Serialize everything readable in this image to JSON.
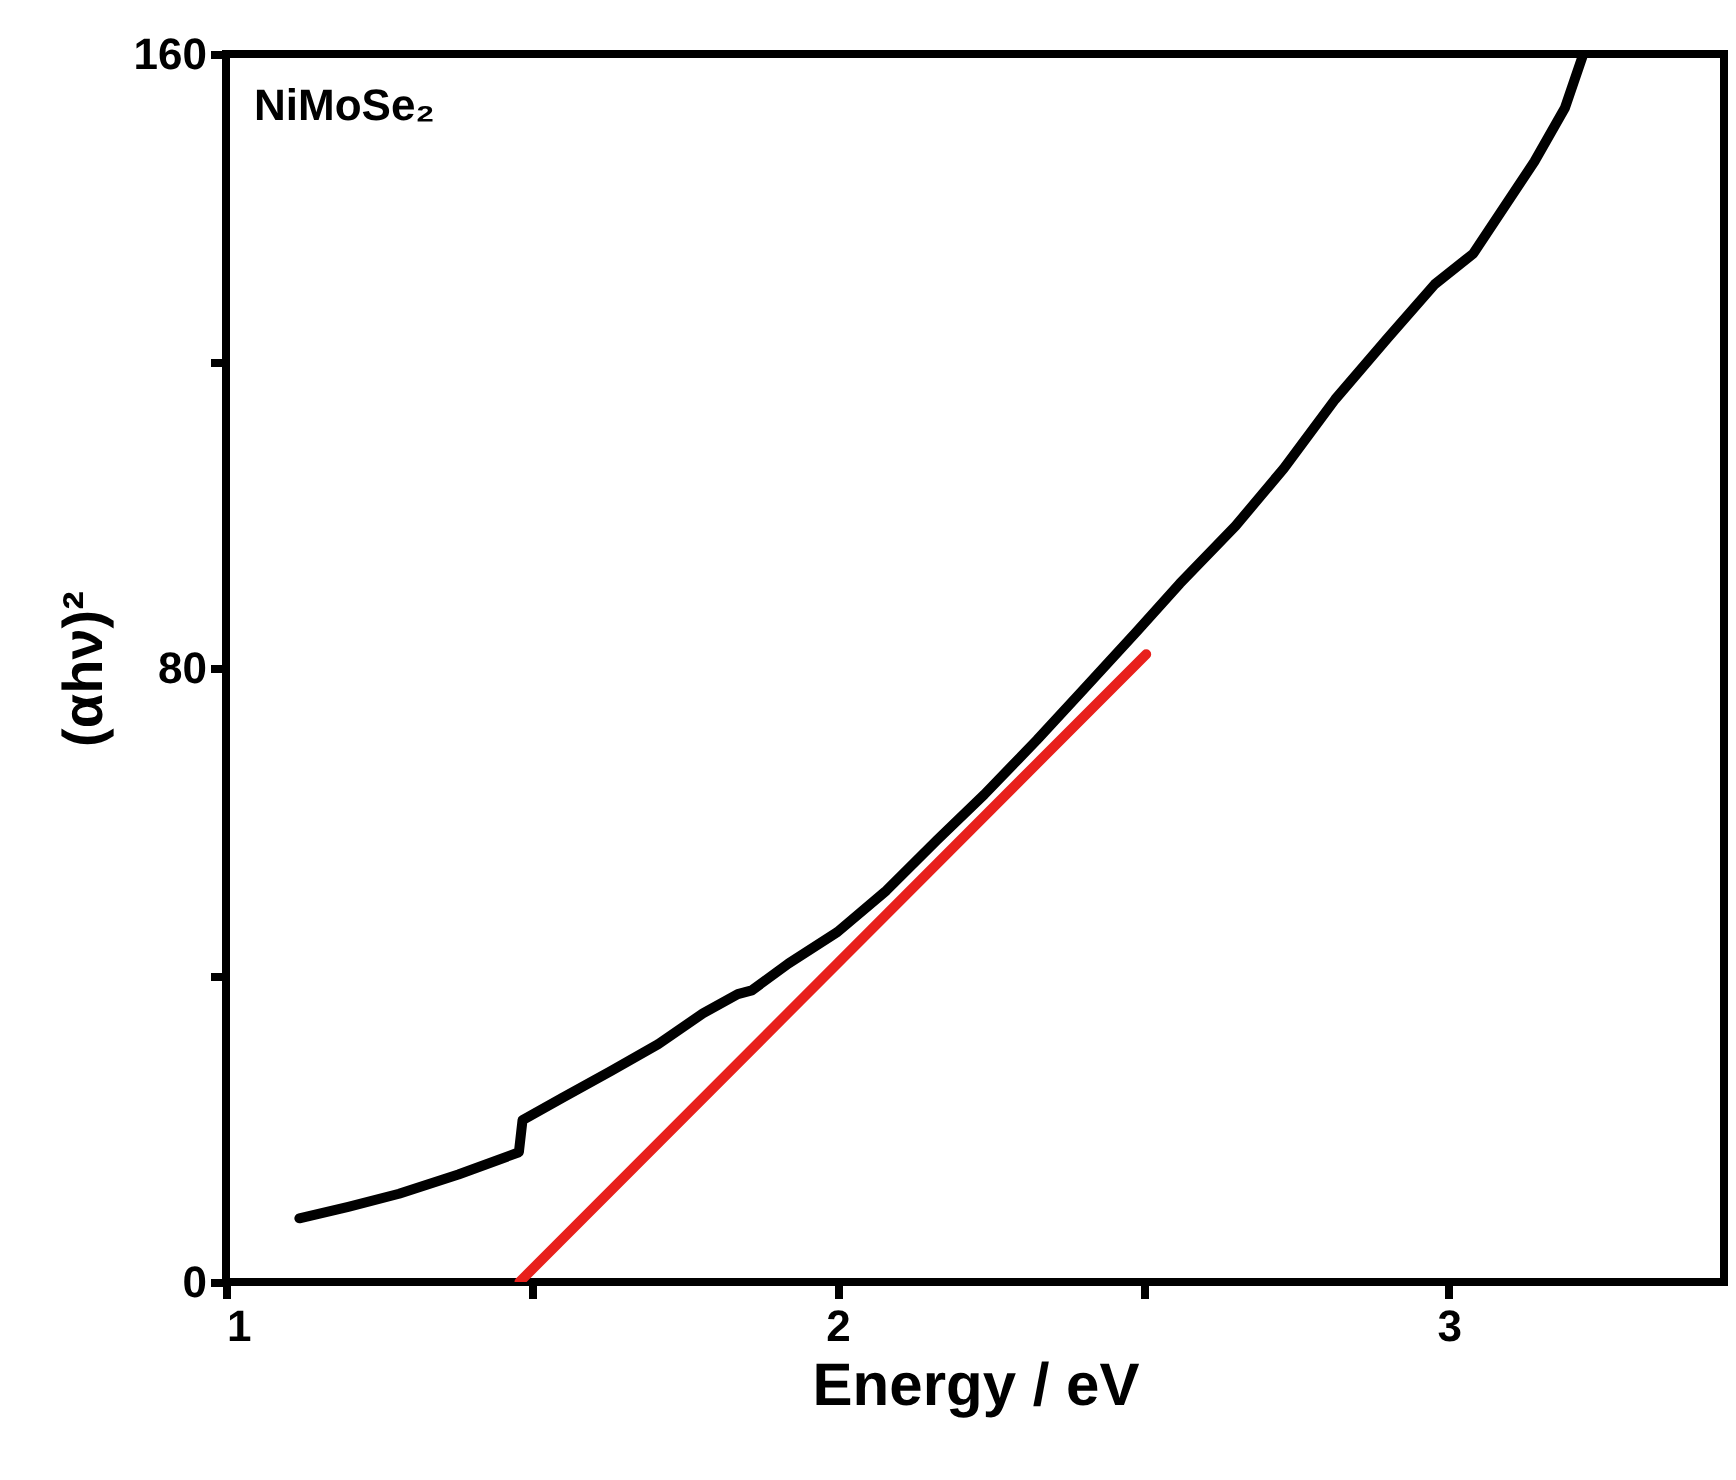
{
  "chart_data": {
    "type": "line",
    "xlabel": "Energy / eV",
    "ylabel": "(αhν)²",
    "annotations": [
      "NiMoSe₂"
    ],
    "xlim": [
      1,
      3.45
    ],
    "ylim": [
      0,
      160
    ],
    "xticks": [
      1,
      {
        "value": 1.5,
        "label": null
      },
      2,
      {
        "value": 2.5,
        "label": null
      },
      3
    ],
    "yticks": [
      0,
      {
        "value": 40,
        "label": null
      },
      80,
      {
        "value": 120,
        "label": null
      },
      160
    ],
    "grid": false,
    "line_style": "solid",
    "marker": "none",
    "series": [
      {
        "color": "#000000",
        "x": [
          1.12,
          1.2,
          1.283,
          1.38,
          1.479,
          1.485,
          1.55,
          1.63,
          1.707,
          1.78,
          1.837,
          1.86,
          1.92,
          2.0,
          2.08,
          2.163,
          2.24,
          2.326,
          2.4,
          2.489,
          2.56,
          2.651,
          2.73,
          2.814,
          2.9,
          2.977,
          3.04,
          3.09,
          3.14,
          3.19,
          3.22
        ],
        "values": [
          8.3,
          9.8,
          11.5,
          14,
          16.9,
          21.1,
          24,
          27.5,
          31,
          35,
          37.5,
          38,
          41.5,
          45.6,
          51,
          57.6,
          63.5,
          70.6,
          77,
          84.7,
          91,
          98.5,
          106,
          115,
          123,
          130,
          134,
          140,
          146,
          153,
          160
        ]
      },
      {
        "type": "line",
        "color": "#e8201c",
        "x": [
          1.48,
          2.505
        ],
        "values": [
          0,
          81.8
        ]
      }
    ]
  }
}
